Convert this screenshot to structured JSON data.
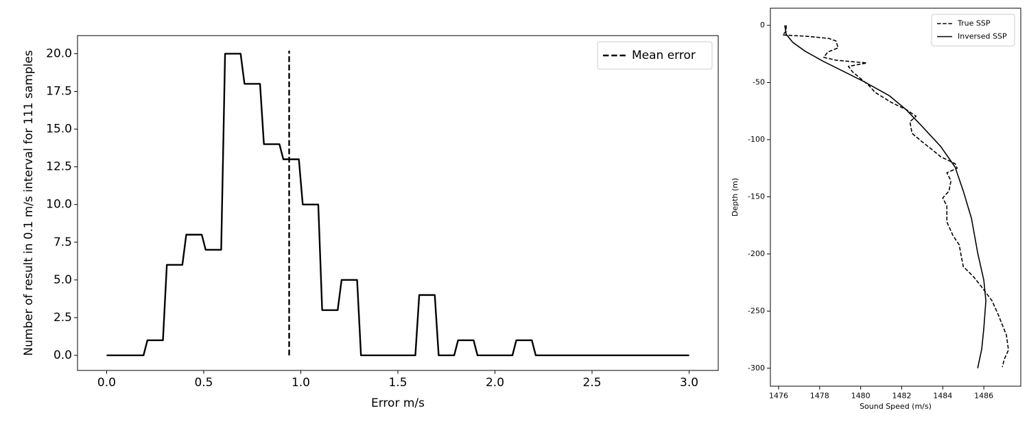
{
  "chart_data": [
    {
      "type": "line",
      "xlabel": "Error m/s",
      "ylabel": "Number of result in 0.1 m/s interval for 111 samples",
      "xlim": [
        -0.15,
        3.15
      ],
      "ylim": [
        -1,
        21.2
      ],
      "xticks": [
        {
          "value": 0,
          "label": "0.0"
        },
        0.5,
        {
          "value": 1,
          "label": "1.0"
        },
        1.5,
        {
          "value": 2,
          "label": "2.0"
        },
        2.5,
        {
          "value": 3,
          "label": "3.0"
        }
      ],
      "yticks": [
        {
          "value": 0,
          "label": "0.0"
        },
        2.5,
        {
          "value": 5,
          "label": "5.0"
        },
        7.5,
        {
          "value": 10,
          "label": "10.0"
        },
        12.5,
        {
          "value": 15,
          "label": "15.0"
        },
        17.5,
        {
          "value": 20,
          "label": "20.0"
        }
      ],
      "legend": "upper right",
      "grid": false,
      "series": [
        {
          "color": "#000000",
          "linestyle": "solid",
          "show_in_legend": false,
          "x": [
            0,
            0.09,
            0.11,
            0.19,
            0.21,
            0.29,
            0.31,
            0.39,
            0.41,
            0.49,
            0.51,
            0.59,
            0.61,
            0.69,
            0.71,
            0.79,
            0.81,
            0.89,
            0.91,
            0.99,
            1.01,
            1.09,
            1.11,
            1.19,
            1.21,
            1.29,
            1.31,
            1.39,
            1.41,
            1.49,
            1.51,
            1.59,
            1.61,
            1.69,
            1.71,
            1.79,
            1.81,
            1.89,
            1.91,
            1.99,
            2.01,
            2.09,
            2.11,
            2.19,
            2.21,
            2.29,
            2.31,
            2.39,
            2.41,
            2.49,
            2.51,
            2.59,
            2.61,
            2.69,
            2.71,
            2.79,
            2.81,
            2.89,
            2.91,
            3.0
          ],
          "values": [
            0,
            0,
            0,
            0,
            1,
            1,
            6,
            6,
            8,
            8,
            7,
            7,
            20,
            20,
            18,
            18,
            14,
            14,
            13,
            13,
            10,
            10,
            3,
            3,
            5,
            5,
            0,
            0,
            0,
            0,
            0,
            0,
            4,
            4,
            0,
            0,
            1,
            1,
            0,
            0,
            0,
            0,
            1,
            1,
            0,
            0,
            0,
            0,
            0,
            0,
            0,
            0,
            0,
            0,
            0,
            0,
            0,
            0,
            0,
            0
          ]
        },
        {
          "name": "Mean error",
          "color": "#000000",
          "linestyle": "dashed",
          "show_in_legend": true,
          "x": [
            0.94,
            0.94
          ],
          "values": [
            0,
            20.2
          ]
        }
      ]
    },
    {
      "type": "line",
      "xlabel": "Sound Speed (m/s)",
      "ylabel": "Depth (m)",
      "xlim": [
        1475.6,
        1487.8
      ],
      "ylim": [
        -315.7,
        15
      ],
      "xticks": [
        1476,
        1478,
        1480,
        1482,
        1484,
        1486
      ],
      "yticks": [
        0,
        -50,
        -100,
        -150,
        -200,
        -250,
        -300
      ],
      "legend": "upper right",
      "grid": false,
      "series": [
        {
          "name": "True SSP",
          "color": "#000000",
          "linestyle": "dashed",
          "show_in_legend": true,
          "x": [
            1476.37,
            1476.37,
            1476.2,
            1477.4,
            1478.45,
            1478.8,
            1478.9,
            1478.4,
            1478.2,
            1478.8,
            1480.3,
            1479.4,
            1479.6,
            1480.0,
            1480.4,
            1480.7,
            1481.5,
            1482.2,
            1482.7,
            1482.4,
            1482.5,
            1483.0,
            1483.5,
            1483.9,
            1484.6,
            1484.7,
            1484.2,
            1484.4,
            1484.3,
            1484.0,
            1484.2,
            1484.2,
            1484.5,
            1484.8,
            1484.9,
            1485.0,
            1485.5,
            1485.9,
            1486.4,
            1486.7,
            1487.1,
            1487.2,
            1487.0,
            1486.9
          ],
          "values": [
            0,
            -5,
            -8.4,
            -9.6,
            -11.4,
            -13.7,
            -19.7,
            -23.3,
            -28,
            -30.5,
            -32.9,
            -35.9,
            -40.6,
            -46.6,
            -52.6,
            -58.6,
            -67.5,
            -73.5,
            -79.5,
            -84.3,
            -94.4,
            -102,
            -109,
            -115,
            -121,
            -125,
            -129,
            -136,
            -145,
            -151,
            -158,
            -172,
            -184,
            -192,
            -202,
            -211,
            -220,
            -229,
            -241,
            -253,
            -271,
            -284,
            -292,
            -299
          ]
        },
        {
          "name": "Inversed SSP",
          "color": "#000000",
          "linestyle": "solid",
          "show_in_legend": true,
          "x": [
            1476.3,
            1476.37,
            1476.7,
            1477.3,
            1478.2,
            1479.2,
            1480.2,
            1481.4,
            1482.2,
            1483.0,
            1483.9,
            1484.6,
            1485.0,
            1485.4,
            1485.7,
            1486.0,
            1486.1,
            1486.0,
            1485.9,
            1485.7
          ],
          "values": [
            0,
            -7.8,
            -15,
            -22.7,
            -31.7,
            -40.6,
            -49.6,
            -61.6,
            -73.5,
            -88.5,
            -106,
            -124,
            -145,
            -169,
            -199,
            -223,
            -241,
            -265,
            -283,
            -300
          ]
        }
      ]
    }
  ]
}
